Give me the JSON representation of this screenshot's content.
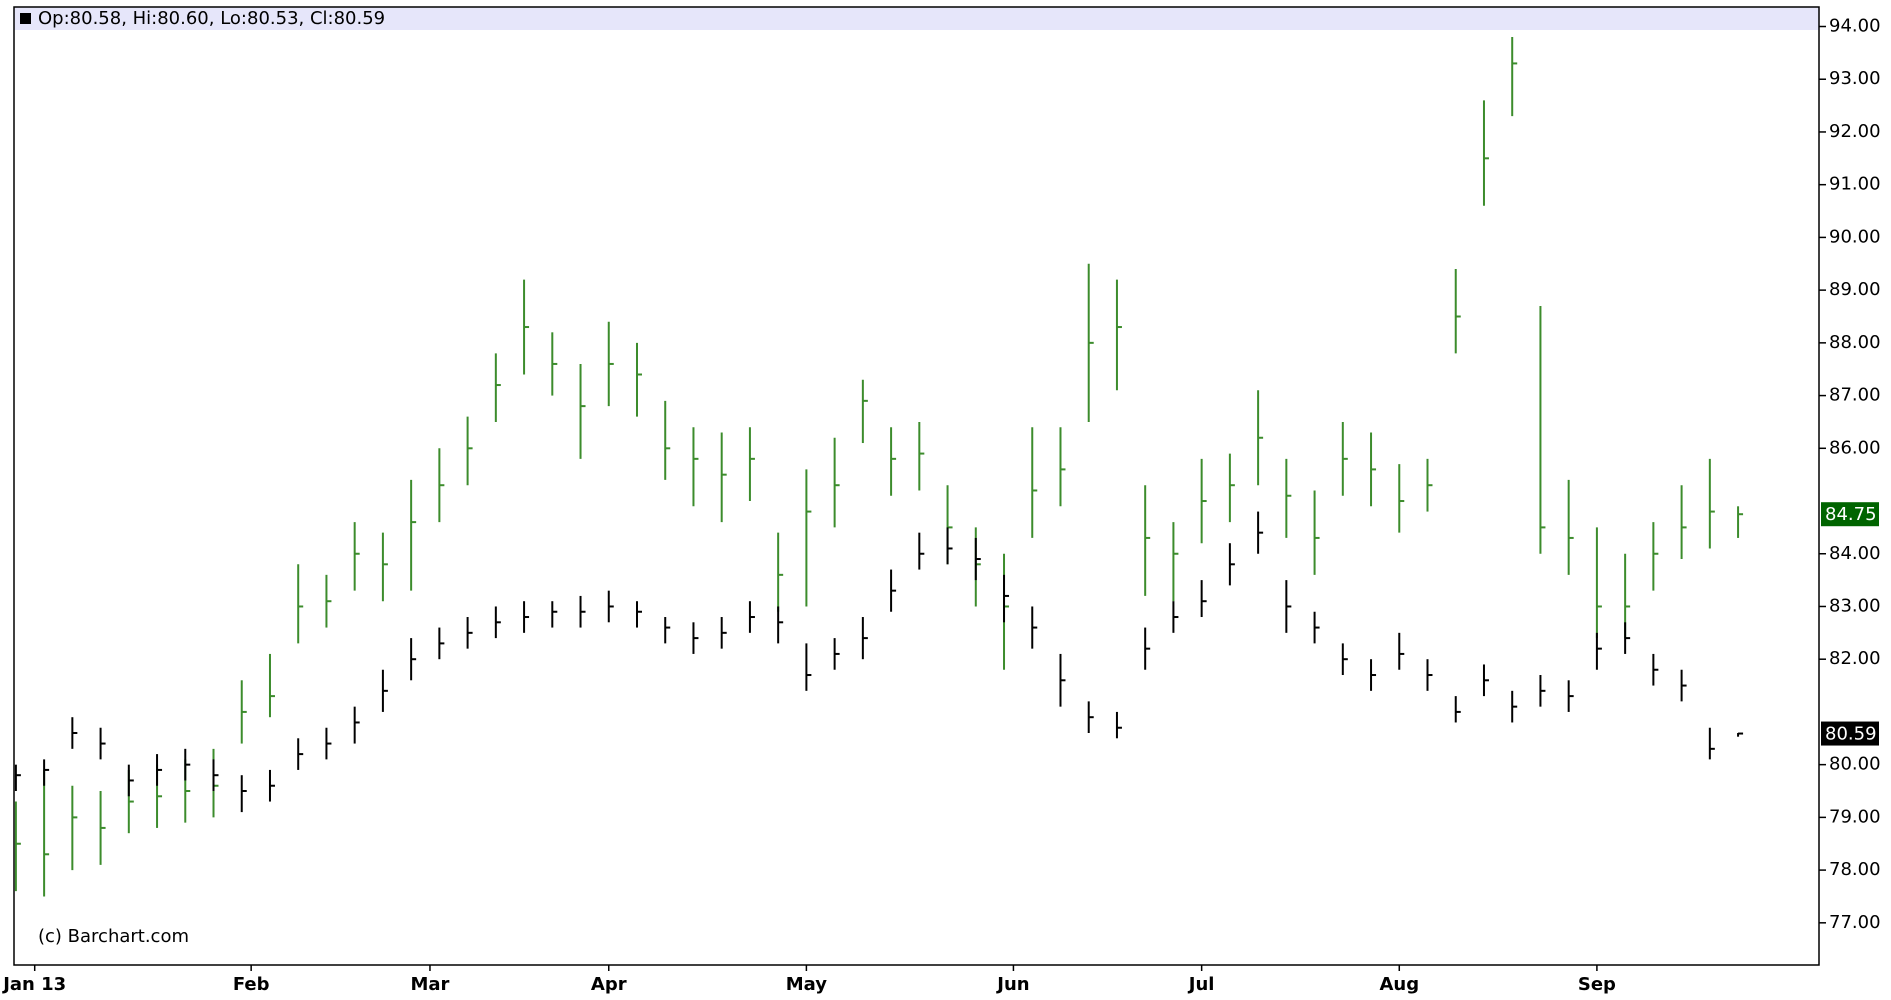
{
  "chart_data": {
    "type": "ohlc",
    "header": "Op:80.58, Hi:80.60, Lo:80.53, Cl:80.59",
    "credit": "(c) Barchart.com",
    "x": [
      0,
      3,
      6,
      9,
      12,
      15,
      18,
      21,
      24,
      27,
      30,
      33,
      36,
      39,
      42,
      45,
      48,
      51,
      54,
      57,
      60,
      63,
      66,
      69,
      72,
      75,
      78,
      81,
      84,
      87,
      90,
      93,
      96,
      99,
      102,
      105,
      108,
      111,
      114,
      117,
      120,
      123,
      126,
      129,
      132,
      135,
      138,
      141,
      144,
      147,
      150,
      153,
      156,
      159,
      162,
      165,
      168,
      171,
      174,
      177,
      180,
      183
    ],
    "series": [
      {
        "color": "#3c8c2c",
        "tag_color": "#006400",
        "high": [
          79.3,
          79.9,
          79.6,
          79.5,
          79.9,
          80.0,
          80.1,
          80.3,
          81.6,
          82.1,
          83.8,
          83.6,
          84.6,
          84.4,
          85.4,
          86.0,
          86.6,
          87.8,
          89.2,
          88.2,
          87.6,
          88.4,
          88.0,
          86.9,
          86.4,
          86.3,
          86.4,
          84.4,
          85.6,
          86.2,
          87.3,
          86.4,
          86.5,
          85.3,
          84.5,
          84.0,
          86.4,
          86.4,
          89.5,
          89.2,
          85.3,
          84.6,
          85.8,
          85.9,
          87.1,
          85.8,
          85.2,
          86.5,
          86.3,
          85.7,
          85.8,
          89.4,
          92.6,
          93.8,
          88.7,
          85.4,
          84.5,
          84.0,
          84.6,
          85.3,
          85.8,
          84.9
        ],
        "low": [
          77.6,
          77.5,
          78.0,
          78.1,
          78.7,
          78.8,
          78.9,
          79.0,
          80.4,
          80.9,
          82.3,
          82.6,
          83.3,
          83.1,
          83.3,
          84.6,
          85.3,
          86.5,
          87.4,
          87.0,
          85.8,
          86.8,
          86.6,
          85.4,
          84.9,
          84.6,
          85.0,
          82.9,
          83.0,
          84.5,
          86.1,
          85.1,
          85.2,
          83.8,
          83.0,
          81.8,
          84.3,
          84.9,
          86.5,
          87.1,
          83.2,
          83.1,
          84.2,
          84.6,
          85.3,
          84.3,
          83.6,
          85.1,
          84.9,
          84.4,
          84.8,
          87.8,
          90.6,
          92.3,
          84.0,
          83.6,
          82.4,
          82.4,
          83.3,
          83.9,
          84.1,
          84.3
        ],
        "close": [
          78.5,
          78.3,
          79.0,
          78.8,
          79.3,
          79.4,
          79.5,
          79.6,
          81.0,
          81.3,
          83.0,
          83.1,
          84.0,
          83.8,
          84.6,
          85.3,
          86.0,
          87.2,
          88.3,
          87.6,
          86.8,
          87.6,
          87.4,
          86.0,
          85.8,
          85.5,
          85.8,
          83.6,
          84.8,
          85.3,
          86.9,
          85.8,
          85.9,
          84.5,
          83.8,
          83.0,
          85.2,
          85.6,
          88.0,
          88.3,
          84.3,
          84.0,
          85.0,
          85.3,
          86.2,
          85.1,
          84.3,
          85.8,
          85.6,
          85.0,
          85.3,
          88.5,
          91.5,
          93.3,
          84.5,
          84.3,
          83.0,
          83.0,
          84.0,
          84.5,
          84.8,
          84.75
        ]
      },
      {
        "color": "#000000",
        "tag_color": "#000000",
        "high": [
          80.0,
          80.1,
          80.9,
          80.7,
          80.0,
          80.2,
          80.3,
          80.1,
          79.8,
          79.9,
          80.5,
          80.7,
          81.1,
          81.8,
          82.4,
          82.6,
          82.8,
          83.0,
          83.1,
          83.1,
          83.2,
          83.3,
          83.1,
          82.8,
          82.7,
          82.8,
          83.1,
          83.0,
          82.3,
          82.4,
          82.8,
          83.7,
          84.4,
          84.5,
          84.3,
          83.6,
          83.0,
          82.1,
          81.2,
          81.0,
          82.6,
          83.1,
          83.5,
          84.2,
          84.8,
          83.5,
          82.9,
          82.3,
          82.0,
          82.5,
          82.0,
          81.3,
          81.9,
          81.4,
          81.7,
          81.6,
          82.5,
          82.7,
          82.1,
          81.8,
          80.7,
          80.6
        ],
        "low": [
          79.5,
          79.6,
          80.3,
          80.1,
          79.4,
          79.6,
          79.7,
          79.5,
          79.1,
          79.3,
          79.9,
          80.1,
          80.4,
          81.0,
          81.6,
          82.0,
          82.2,
          82.4,
          82.5,
          82.6,
          82.6,
          82.7,
          82.6,
          82.3,
          82.1,
          82.2,
          82.5,
          82.3,
          81.4,
          81.8,
          82.0,
          82.9,
          83.7,
          83.8,
          83.5,
          82.7,
          82.2,
          81.1,
          80.6,
          80.5,
          81.8,
          82.5,
          82.8,
          83.4,
          84.0,
          82.5,
          82.3,
          81.7,
          81.4,
          81.8,
          81.4,
          80.8,
          81.3,
          80.8,
          81.1,
          81.0,
          81.8,
          82.1,
          81.5,
          81.2,
          80.1,
          80.53
        ],
        "close": [
          79.8,
          79.9,
          80.6,
          80.4,
          79.7,
          79.9,
          80.0,
          79.8,
          79.5,
          79.6,
          80.2,
          80.4,
          80.8,
          81.4,
          82.0,
          82.3,
          82.5,
          82.7,
          82.8,
          82.9,
          82.9,
          83.0,
          82.9,
          82.6,
          82.4,
          82.5,
          82.8,
          82.7,
          81.7,
          82.1,
          82.4,
          83.3,
          84.0,
          84.1,
          83.9,
          83.2,
          82.6,
          81.6,
          80.9,
          80.7,
          82.2,
          82.8,
          83.1,
          83.8,
          84.4,
          83.0,
          82.6,
          82.0,
          81.7,
          82.1,
          81.7,
          81.0,
          81.6,
          81.1,
          81.4,
          81.3,
          82.2,
          82.4,
          81.8,
          81.5,
          80.3,
          80.59
        ]
      }
    ],
    "xlim": [
      -0.2,
      191.6
    ],
    "xticks": [
      {
        "value": 2,
        "label": "Jan 13"
      },
      {
        "value": 25,
        "label": "Feb"
      },
      {
        "value": 44,
        "label": "Mar"
      },
      {
        "value": 63,
        "label": "Apr"
      },
      {
        "value": 84,
        "label": "May"
      },
      {
        "value": 106,
        "label": "Jun"
      },
      {
        "value": 126,
        "label": "Jul"
      },
      {
        "value": 147,
        "label": "Aug"
      },
      {
        "value": 168,
        "label": "Sep"
      }
    ],
    "ylim": [
      76.2,
      94.37
    ],
    "yticks": [
      {
        "value": 77,
        "label": "77.00"
      },
      {
        "value": 78,
        "label": "78.00"
      },
      {
        "value": 79,
        "label": "79.00"
      },
      {
        "value": 80,
        "label": "80.00"
      },
      {
        "value": 82,
        "label": "82.00"
      },
      {
        "value": 83,
        "label": "83.00"
      },
      {
        "value": 84,
        "label": "84.00"
      },
      {
        "value": 86,
        "label": "86.00"
      },
      {
        "value": 87,
        "label": "87.00"
      },
      {
        "value": 88,
        "label": "88.00"
      },
      {
        "value": 89,
        "label": "89.00"
      },
      {
        "value": 90,
        "label": "90.00"
      },
      {
        "value": 91,
        "label": "91.00"
      },
      {
        "value": 92,
        "label": "92.00"
      },
      {
        "value": 93,
        "label": "93.00"
      },
      {
        "value": 94,
        "label": "94.00"
      }
    ],
    "grid": false
  }
}
